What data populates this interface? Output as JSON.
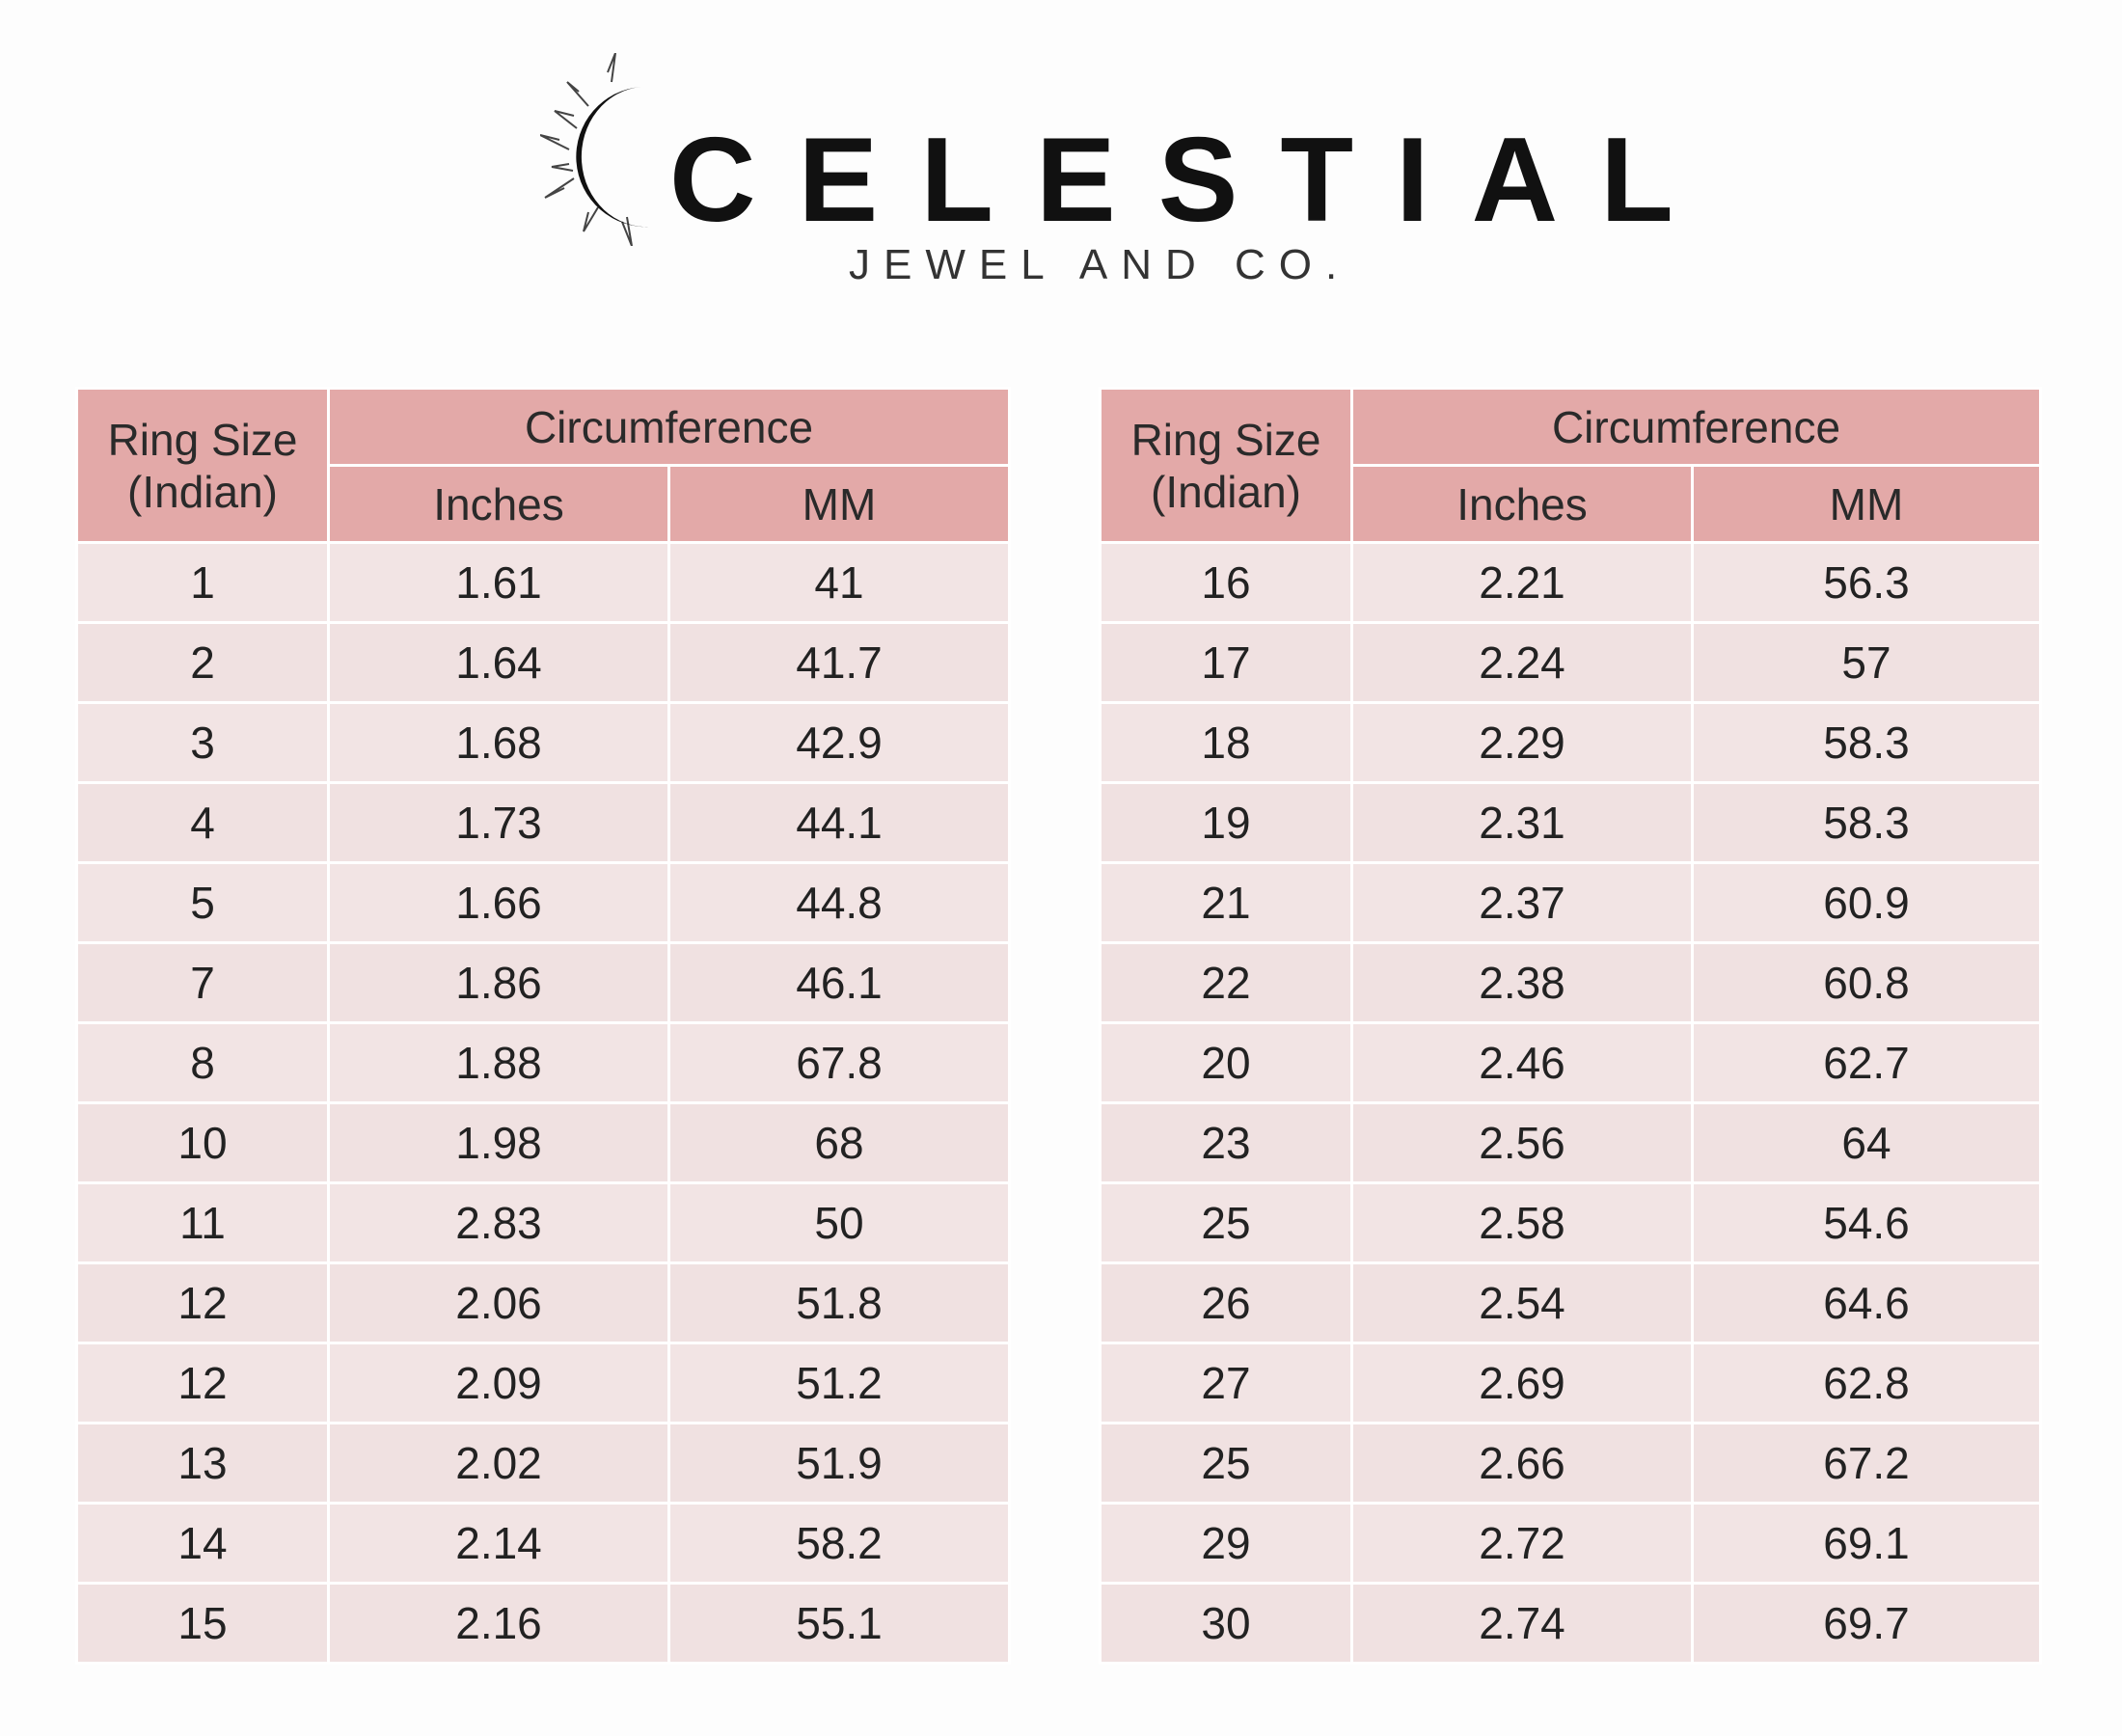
{
  "brand": {
    "name": "CELESTIAL",
    "tagline": "JEWEL AND CO.",
    "logo_icon": "crescent-moon-sun-icon"
  },
  "colors": {
    "header_bg": "#e3a9a8",
    "row_bg": "#f2e4e4",
    "text": "#222222"
  },
  "tables": [
    {
      "headers": {
        "ring_size": "Ring Size",
        "ring_size_sub": "(Indian)",
        "circumference": "Circumference",
        "inches": "Inches",
        "mm": "MM"
      },
      "rows": [
        [
          "1",
          "1.61",
          "41"
        ],
        [
          "2",
          "1.64",
          "41.7"
        ],
        [
          "3",
          "1.68",
          "42.9"
        ],
        [
          "4",
          "1.73",
          "44.1"
        ],
        [
          "5",
          "1.66",
          "44.8"
        ],
        [
          "7",
          "1.86",
          "46.1"
        ],
        [
          "8",
          "1.88",
          "67.8"
        ],
        [
          "10",
          "1.98",
          "68"
        ],
        [
          "11",
          "2.83",
          "50"
        ],
        [
          "12",
          "2.06",
          "51.8"
        ],
        [
          "12",
          "2.09",
          "51.2"
        ],
        [
          "13",
          "2.02",
          "51.9"
        ],
        [
          "14",
          "2.14",
          "58.2"
        ],
        [
          "15",
          "2.16",
          "55.1"
        ]
      ]
    },
    {
      "headers": {
        "ring_size": "Ring Size",
        "ring_size_sub": "(Indian)",
        "circumference": "Circumference",
        "inches": "Inches",
        "mm": "MM"
      },
      "rows": [
        [
          "16",
          "2.21",
          "56.3"
        ],
        [
          "17",
          "2.24",
          "57"
        ],
        [
          "18",
          "2.29",
          "58.3"
        ],
        [
          "19",
          "2.31",
          "58.3"
        ],
        [
          "21",
          "2.37",
          "60.9"
        ],
        [
          "22",
          "2.38",
          "60.8"
        ],
        [
          "20",
          "2.46",
          "62.7"
        ],
        [
          "23",
          "2.56",
          "64"
        ],
        [
          "25",
          "2.58",
          "54.6"
        ],
        [
          "26",
          "2.54",
          "64.6"
        ],
        [
          "27",
          "2.69",
          "62.8"
        ],
        [
          "25",
          "2.66",
          "67.2"
        ],
        [
          "29",
          "2.72",
          "69.1"
        ],
        [
          "30",
          "2.74",
          "69.7"
        ]
      ]
    }
  ]
}
